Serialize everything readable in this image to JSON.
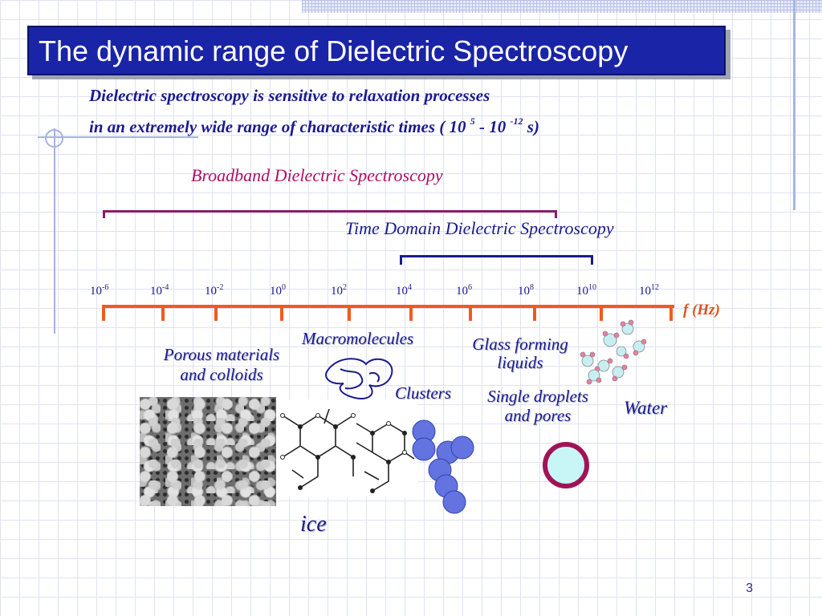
{
  "title": "The dynamic range of Dielectric Spectroscopy",
  "intro": {
    "line1": "Dielectric spectroscopy is sensitive to relaxation  processes",
    "line2_prefix": "in an  extremely  wide  range  of  characteristic times ( 10 ",
    "exp1": "5",
    "middle": " - 10 ",
    "exp2": "-12",
    "suffix": " s)"
  },
  "ranges": {
    "broadband": "Broadband Dielectric Spectroscopy",
    "time_domain": "Time Domain Dielectric Spectroscopy"
  },
  "axis": {
    "unit": "f (Hz)",
    "ticks": [
      {
        "base": "10",
        "exp": "-6"
      },
      {
        "base": "10",
        "exp": "-4"
      },
      {
        "base": "10",
        "exp": "-2"
      },
      {
        "base": "10",
        "exp": "0"
      },
      {
        "base": "10",
        "exp": "2"
      },
      {
        "base": "10",
        "exp": "4"
      },
      {
        "base": "10",
        "exp": "6"
      },
      {
        "base": "10",
        "exp": "8"
      },
      {
        "base": "10",
        "exp": "10"
      },
      {
        "base": "10",
        "exp": "12"
      }
    ]
  },
  "labels": {
    "porous_line1": "Porous materials",
    "porous_line2": "and colloids",
    "macromolecules": "Macromolecules",
    "clusters": "Clusters",
    "glass_line1": "Glass forming",
    "glass_line2": "liquids",
    "droplets_line1": "Single droplets",
    "droplets_line2": "and pores",
    "water": "Water",
    "ice": "ice"
  },
  "page_number": "3",
  "colors": {
    "title_bg": "#1a24a6",
    "text_blue": "#1a1a8c",
    "broadband": "#aa1166",
    "axis": "#f05a1f",
    "sphere": "#6373e0",
    "droplet_ring": "#a01457",
    "droplet_fill": "#c8f6f6"
  }
}
